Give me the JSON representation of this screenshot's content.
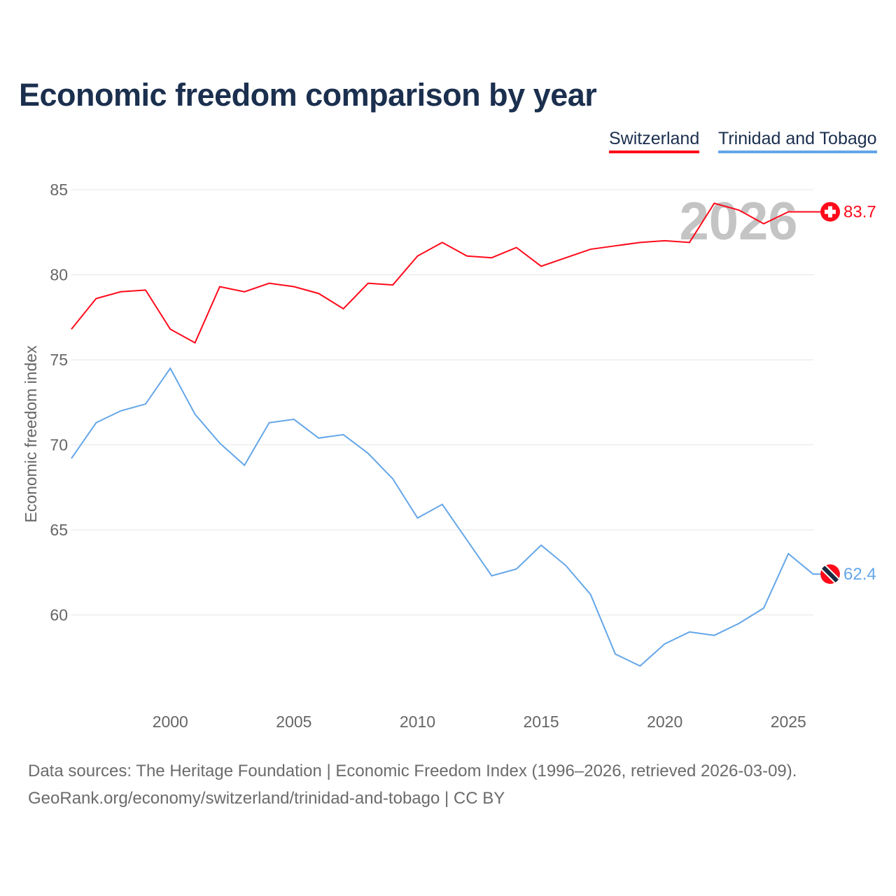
{
  "title": "Economic freedom comparison by year",
  "legend": [
    {
      "name": "Switzerland",
      "color": "#ff0a1a"
    },
    {
      "name": "Trinidad and Tobago",
      "color": "#64a6e8"
    }
  ],
  "year_watermark": "2026",
  "footer": {
    "line1": "Data sources: The Heritage Foundation | Economic Freedom Index (1996–2026, retrieved 2026-03-09).",
    "line2": "GeoRank.org/economy/switzerland/trinidad-and-tobago | CC BY"
  },
  "chart_data": {
    "type": "line",
    "title": "Economic freedom comparison by year",
    "xlabel": "",
    "ylabel": "Economic freedom index",
    "xlim": [
      1996,
      2026
    ],
    "ylim": [
      55,
      86
    ],
    "xticks": [
      2000,
      2005,
      2010,
      2015,
      2020,
      2025
    ],
    "yticks": [
      60,
      65,
      70,
      75,
      80,
      85
    ],
    "grid": true,
    "legend_position": "top-right",
    "x": [
      1996,
      1997,
      1998,
      1999,
      2000,
      2001,
      2002,
      2003,
      2004,
      2005,
      2006,
      2007,
      2008,
      2009,
      2010,
      2011,
      2012,
      2013,
      2014,
      2015,
      2016,
      2017,
      2018,
      2019,
      2020,
      2021,
      2022,
      2023,
      2024,
      2025,
      2026
    ],
    "series": [
      {
        "name": "Switzerland",
        "color": "#ff0a1a",
        "end_label": "83.7",
        "values": [
          76.8,
          78.6,
          79.0,
          79.1,
          76.8,
          76.0,
          79.3,
          79.0,
          79.5,
          79.3,
          78.9,
          78.0,
          79.5,
          79.4,
          81.1,
          81.9,
          81.1,
          81.0,
          81.6,
          80.5,
          81.0,
          81.5,
          81.7,
          81.9,
          82.0,
          81.9,
          84.2,
          83.8,
          83.0,
          83.7,
          83.7
        ]
      },
      {
        "name": "Trinidad and Tobago",
        "color": "#64a6e8",
        "end_label": "62.4",
        "values": [
          69.2,
          71.3,
          72.0,
          72.4,
          74.5,
          71.8,
          70.1,
          68.8,
          71.3,
          71.5,
          70.4,
          70.6,
          69.5,
          68.0,
          65.7,
          66.5,
          64.4,
          62.3,
          62.7,
          64.1,
          62.9,
          61.2,
          57.7,
          57.0,
          58.3,
          59.0,
          58.8,
          59.5,
          60.4,
          63.6,
          62.4
        ]
      }
    ]
  }
}
